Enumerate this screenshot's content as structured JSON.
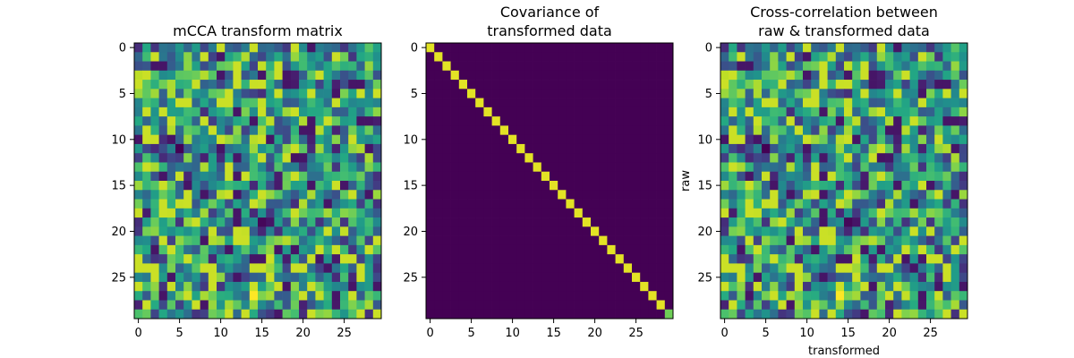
{
  "figure": {
    "background": "#ffffff"
  },
  "chart_data": [
    {
      "type": "heatmap",
      "title": "mCCA transform matrix",
      "xlabel": "",
      "ylabel": "",
      "rows": 30,
      "cols": 30,
      "colormap": "viridis",
      "pattern": "random",
      "seed": 11,
      "xticks": [
        0,
        5,
        10,
        15,
        20,
        25
      ],
      "yticks": [
        0,
        5,
        10,
        15,
        20,
        25
      ],
      "xtick_labels": [
        "0",
        "5",
        "10",
        "15",
        "20",
        "25"
      ],
      "ytick_labels": [
        "0",
        "5",
        "10",
        "15",
        "20",
        "25"
      ],
      "highlights": [
        {
          "row": 27,
          "col": 14,
          "value": 1.0
        },
        {
          "row": 0,
          "col": 19,
          "value": 0.92
        },
        {
          "row": 21,
          "col": 10,
          "value": 0.85
        },
        {
          "row": 10,
          "col": 24,
          "value": 0.82
        },
        {
          "row": 11,
          "col": 5,
          "value": 0.0
        },
        {
          "row": 19,
          "col": 15,
          "value": 0.02
        },
        {
          "row": 12,
          "col": 19,
          "value": 0.05
        }
      ]
    },
    {
      "type": "heatmap",
      "title": [
        "Covariance of",
        "transformed data"
      ],
      "xlabel": "",
      "ylabel": "",
      "rows": 30,
      "cols": 30,
      "colormap": "viridis",
      "pattern": "identity",
      "diagonal_value": 0.96,
      "last_diagonal_value": 0.78,
      "off_diagonal_value": 0.0,
      "xticks": [
        0,
        5,
        10,
        15,
        20,
        25
      ],
      "yticks": [
        0,
        5,
        10,
        15,
        20,
        25
      ],
      "xtick_labels": [
        "0",
        "5",
        "10",
        "15",
        "20",
        "25"
      ],
      "ytick_labels": [
        "0",
        "5",
        "10",
        "15",
        "20",
        "25"
      ],
      "highlights": []
    },
    {
      "type": "heatmap",
      "title": [
        "Cross-correlation between",
        "raw & transformed data"
      ],
      "xlabel": "transformed",
      "ylabel": "raw",
      "rows": 30,
      "cols": 30,
      "colormap": "viridis",
      "pattern": "random",
      "seed": 11,
      "xticks": [
        0,
        5,
        10,
        15,
        20,
        25
      ],
      "yticks": [
        0,
        5,
        10,
        15,
        20,
        25
      ],
      "xtick_labels": [
        "0",
        "5",
        "10",
        "15",
        "20",
        "25"
      ],
      "ytick_labels": [
        "0",
        "5",
        "10",
        "15",
        "20",
        "25"
      ],
      "highlights": [
        {
          "row": 27,
          "col": 14,
          "value": 1.0
        },
        {
          "row": 0,
          "col": 19,
          "value": 0.92
        },
        {
          "row": 21,
          "col": 10,
          "value": 0.85
        },
        {
          "row": 10,
          "col": 24,
          "value": 0.82
        },
        {
          "row": 11,
          "col": 5,
          "value": 0.0
        },
        {
          "row": 19,
          "col": 15,
          "value": 0.02
        },
        {
          "row": 12,
          "col": 19,
          "value": 0.05
        }
      ]
    }
  ]
}
